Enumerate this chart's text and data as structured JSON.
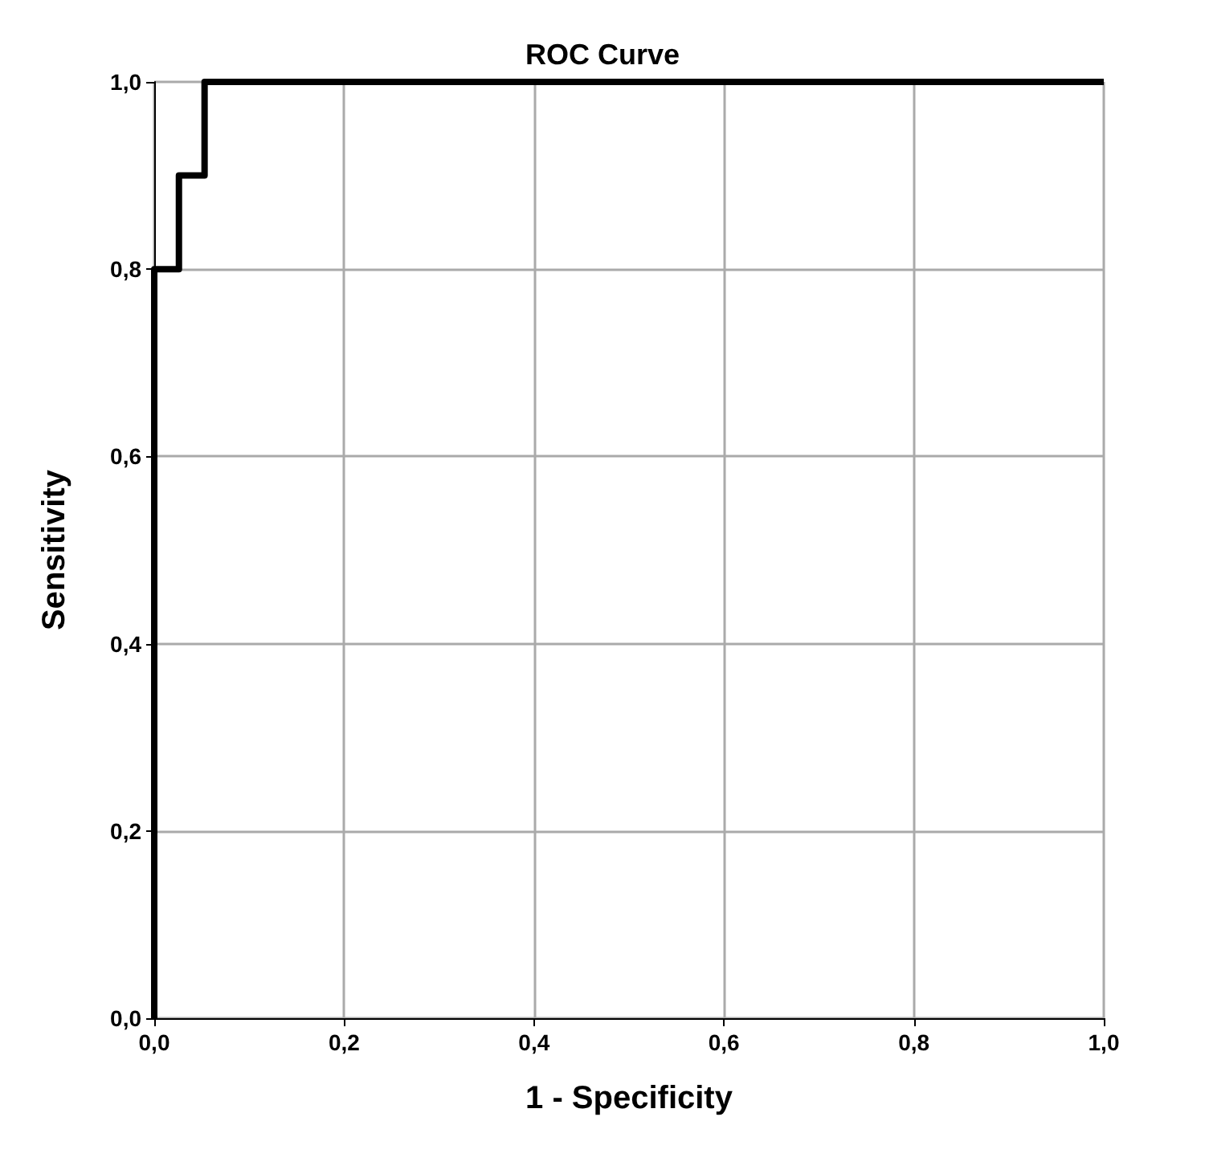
{
  "chart_data": {
    "type": "line",
    "title": "ROC Curve",
    "xlabel": "1 - Specificity",
    "ylabel": "Sensitivity",
    "x": [
      0,
      0,
      0.026,
      0.026,
      0.053,
      0.053,
      1
    ],
    "series": [
      {
        "color": "#000000",
        "values": [
          0,
          0.8,
          0.8,
          0.9,
          0.9,
          1,
          1
        ]
      }
    ],
    "xlim": [
      0,
      1
    ],
    "ylim": [
      0,
      1
    ],
    "xticks": [
      {
        "value": 0,
        "label": "0,0"
      },
      {
        "value": 0.2,
        "label": "0,2"
      },
      {
        "value": 0.4,
        "label": "0,4"
      },
      {
        "value": 0.6,
        "label": "0,6"
      },
      {
        "value": 0.8,
        "label": "0,8"
      },
      {
        "value": 1,
        "label": "1,0"
      }
    ],
    "yticks": [
      {
        "value": 0,
        "label": "0,0"
      },
      {
        "value": 0.2,
        "label": "0,2"
      },
      {
        "value": 0.4,
        "label": "0,4"
      },
      {
        "value": 0.6,
        "label": "0,6"
      },
      {
        "value": 0.8,
        "label": "0,8"
      },
      {
        "value": 1,
        "label": "1,0"
      }
    ],
    "grid": true,
    "marker": "none",
    "line_style": "solid"
  }
}
